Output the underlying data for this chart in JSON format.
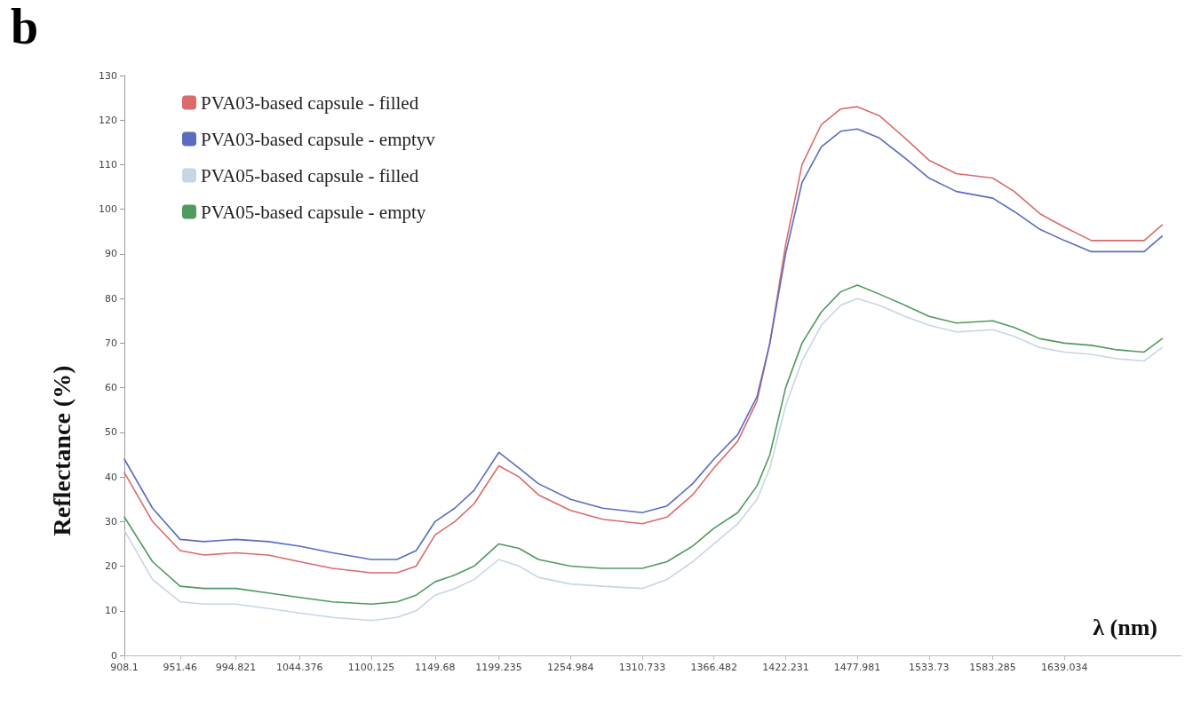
{
  "chart_data": {
    "type": "line",
    "xlabel": "λ (nm)",
    "ylabel": "Reflectance (%)",
    "annotations": [
      "b"
    ],
    "x": [
      908.1,
      930,
      951.46,
      970,
      994.821,
      1020,
      1044.376,
      1070,
      1100.125,
      1120,
      1135,
      1149.68,
      1165,
      1180,
      1199.235,
      1215,
      1230,
      1254.984,
      1280,
      1310.733,
      1330,
      1350,
      1366.482,
      1385,
      1400,
      1410,
      1422.231,
      1435,
      1450,
      1465,
      1477.981,
      1495,
      1515,
      1533.73,
      1555,
      1583.285,
      1600,
      1620,
      1639.034,
      1660,
      1680,
      1701,
      1715
    ],
    "series": [
      {
        "name": "PVA03-based capsule - filled",
        "color": "#d96b6b",
        "values": [
          41,
          30,
          23.5,
          22.5,
          23,
          22.5,
          21,
          19.5,
          18.5,
          18.5,
          20,
          27,
          30,
          34,
          42.5,
          40,
          36,
          32.5,
          30.5,
          29.5,
          31,
          36,
          42,
          48,
          57,
          70,
          92,
          110,
          119,
          122.5,
          123,
          121,
          116,
          111,
          108,
          107,
          104,
          99,
          96,
          93,
          93,
          93,
          96.5
        ]
      },
      {
        "name": "PVA03-based capsule - emptyv",
        "color": "#5b6bc0",
        "values": [
          44,
          33,
          26,
          25.5,
          26,
          25.5,
          24.5,
          23,
          21.5,
          21.5,
          23.5,
          30,
          33,
          37,
          45.5,
          42,
          38.5,
          35,
          33,
          32,
          33.5,
          38.5,
          44,
          49.5,
          58,
          70,
          90,
          106,
          114,
          117.5,
          118,
          116,
          111.5,
          107,
          104,
          102.5,
          99.5,
          95.5,
          93,
          90.5,
          90.5,
          90.5,
          94
        ]
      },
      {
        "name": "PVA05-based capsule - filled",
        "color": "#c6d6e4",
        "values": [
          28,
          17,
          12,
          11.5,
          11.5,
          10.5,
          9.5,
          8.5,
          7.8,
          8.5,
          10,
          13.5,
          15,
          17,
          21.5,
          20,
          17.5,
          16,
          15.5,
          15,
          17,
          21,
          25,
          29.5,
          35,
          42,
          56,
          66,
          74,
          78.5,
          80,
          78.5,
          76,
          74,
          72.5,
          73,
          71.5,
          69,
          68,
          67.5,
          66.5,
          66,
          69
        ]
      },
      {
        "name": "PVA05-based capsule - empty",
        "color": "#4f9a5f",
        "values": [
          31,
          21,
          15.5,
          15,
          15,
          14,
          13,
          12,
          11.5,
          12,
          13.5,
          16.5,
          18,
          20,
          25,
          24,
          21.5,
          20,
          19.5,
          19.5,
          21,
          24.5,
          28.5,
          32,
          38,
          45,
          60,
          70,
          77,
          81.5,
          83,
          81,
          78.5,
          76,
          74.5,
          75,
          73.5,
          71,
          70,
          69.5,
          68.5,
          68,
          71
        ]
      }
    ],
    "xlim": [
      908.1,
      1730
    ],
    "xticks": [
      908.1,
      951.46,
      994.821,
      1044.376,
      1100.125,
      1149.68,
      1199.235,
      1254.984,
      1310.733,
      1366.482,
      1422.231,
      1477.981,
      1533.73,
      1583.285,
      1639.034
    ],
    "ylim": [
      0,
      130
    ],
    "yticks": [
      0,
      10,
      20,
      30,
      40,
      50,
      60,
      70,
      80,
      90,
      100,
      110,
      120,
      130
    ],
    "grid": false,
    "legend": "top left",
    "marker": "none",
    "line_style": "solid"
  }
}
